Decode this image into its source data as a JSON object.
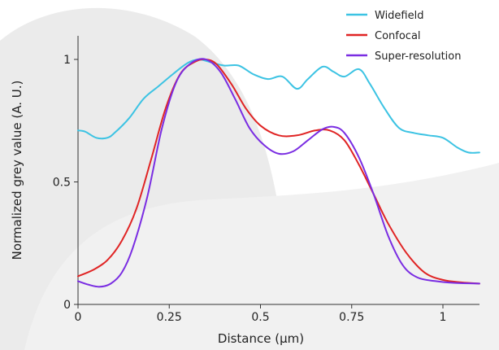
{
  "chart_data": {
    "type": "line",
    "title": "",
    "xlabel": "Distance (µm)",
    "ylabel": "Normalized grey value (A. U.)",
    "xlim": [
      0,
      1.1
    ],
    "ylim": [
      0,
      1.0
    ],
    "x_ticks": [
      0,
      0.25,
      0.5,
      0.75,
      1
    ],
    "x_tick_labels": [
      "0",
      "0.25",
      "0.5",
      "0.75",
      "1"
    ],
    "y_ticks": [
      0,
      0.5,
      1
    ],
    "y_tick_labels": [
      "0",
      "0.5",
      "1"
    ],
    "grid": false,
    "legend_position": "top-right",
    "series": [
      {
        "name": "Widefield",
        "color": "#3cc3e3",
        "points": [
          [
            0,
            0.71
          ],
          [
            0.02,
            0.705
          ],
          [
            0.05,
            0.68
          ],
          [
            0.08,
            0.68
          ],
          [
            0.1,
            0.7
          ],
          [
            0.14,
            0.76
          ],
          [
            0.18,
            0.84
          ],
          [
            0.22,
            0.89
          ],
          [
            0.26,
            0.94
          ],
          [
            0.3,
            0.985
          ],
          [
            0.33,
            1.0
          ],
          [
            0.36,
            0.99
          ],
          [
            0.4,
            0.975
          ],
          [
            0.44,
            0.975
          ],
          [
            0.48,
            0.94
          ],
          [
            0.52,
            0.92
          ],
          [
            0.56,
            0.93
          ],
          [
            0.6,
            0.88
          ],
          [
            0.63,
            0.92
          ],
          [
            0.67,
            0.97
          ],
          [
            0.7,
            0.95
          ],
          [
            0.73,
            0.93
          ],
          [
            0.77,
            0.96
          ],
          [
            0.8,
            0.9
          ],
          [
            0.84,
            0.8
          ],
          [
            0.88,
            0.72
          ],
          [
            0.92,
            0.7
          ],
          [
            0.96,
            0.69
          ],
          [
            1.0,
            0.68
          ],
          [
            1.04,
            0.64
          ],
          [
            1.07,
            0.62
          ],
          [
            1.1,
            0.62
          ]
        ]
      },
      {
        "name": "Confocal",
        "color": "#e02424",
        "points": [
          [
            0,
            0.115
          ],
          [
            0.04,
            0.14
          ],
          [
            0.08,
            0.18
          ],
          [
            0.12,
            0.26
          ],
          [
            0.16,
            0.39
          ],
          [
            0.2,
            0.59
          ],
          [
            0.24,
            0.8
          ],
          [
            0.28,
            0.94
          ],
          [
            0.32,
            0.99
          ],
          [
            0.35,
            1.0
          ],
          [
            0.38,
            0.98
          ],
          [
            0.42,
            0.9
          ],
          [
            0.46,
            0.8
          ],
          [
            0.5,
            0.73
          ],
          [
            0.55,
            0.69
          ],
          [
            0.6,
            0.69
          ],
          [
            0.65,
            0.71
          ],
          [
            0.69,
            0.71
          ],
          [
            0.73,
            0.67
          ],
          [
            0.77,
            0.57
          ],
          [
            0.81,
            0.45
          ],
          [
            0.85,
            0.33
          ],
          [
            0.9,
            0.21
          ],
          [
            0.95,
            0.13
          ],
          [
            1.0,
            0.1
          ],
          [
            1.05,
            0.09
          ],
          [
            1.1,
            0.085
          ]
        ]
      },
      {
        "name": "Super-resolution",
        "color": "#7a2de2",
        "points": [
          [
            0,
            0.095
          ],
          [
            0.03,
            0.08
          ],
          [
            0.06,
            0.072
          ],
          [
            0.09,
            0.085
          ],
          [
            0.12,
            0.13
          ],
          [
            0.15,
            0.23
          ],
          [
            0.19,
            0.44
          ],
          [
            0.23,
            0.72
          ],
          [
            0.27,
            0.91
          ],
          [
            0.31,
            0.985
          ],
          [
            0.35,
            1.0
          ],
          [
            0.39,
            0.95
          ],
          [
            0.43,
            0.84
          ],
          [
            0.47,
            0.72
          ],
          [
            0.51,
            0.65
          ],
          [
            0.55,
            0.615
          ],
          [
            0.59,
            0.625
          ],
          [
            0.63,
            0.67
          ],
          [
            0.67,
            0.715
          ],
          [
            0.7,
            0.725
          ],
          [
            0.73,
            0.7
          ],
          [
            0.77,
            0.6
          ],
          [
            0.81,
            0.45
          ],
          [
            0.85,
            0.28
          ],
          [
            0.89,
            0.16
          ],
          [
            0.93,
            0.11
          ],
          [
            0.98,
            0.095
          ],
          [
            1.03,
            0.088
          ],
          [
            1.1,
            0.085
          ]
        ]
      }
    ]
  }
}
